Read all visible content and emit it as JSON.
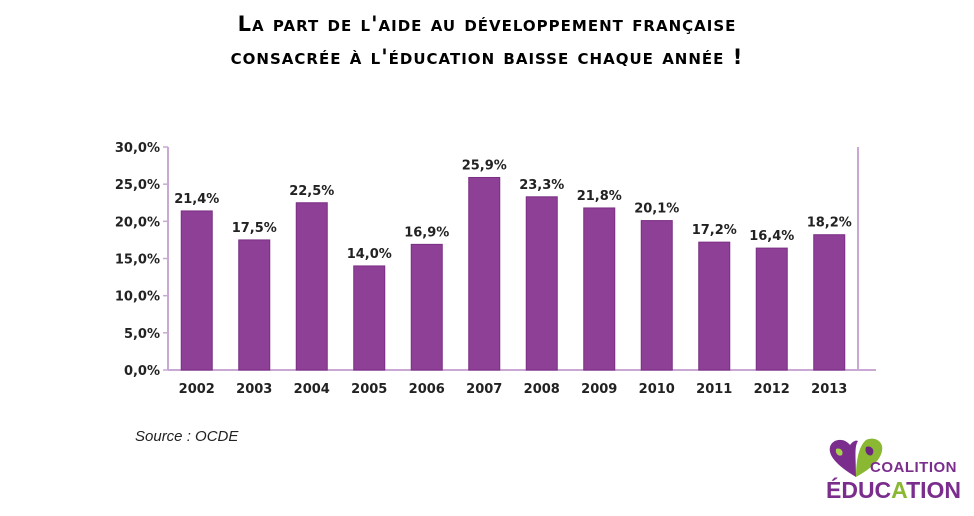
{
  "title": {
    "line1": "La part de l'aide au développement française",
    "line2": "consacrée à l'éducation baisse chaque année  !"
  },
  "source": "Source : OCDE",
  "logo": {
    "line1": "COALITION",
    "line2_first": "ÉDUC",
    "line2_mid": "A",
    "line2_last": "TION"
  },
  "chart_data": {
    "type": "bar",
    "categories": [
      "2002",
      "2003",
      "2004",
      "2005",
      "2006",
      "2007",
      "2008",
      "2009",
      "2010",
      "2011",
      "2012",
      "2013"
    ],
    "values": [
      21.4,
      17.5,
      22.5,
      14.0,
      16.9,
      25.9,
      23.3,
      21.8,
      20.1,
      17.2,
      16.4,
      18.2
    ],
    "value_labels": [
      "21,4%",
      "17,5%",
      "22,5%",
      "14,0%",
      "16,9%",
      "25,9%",
      "23,3%",
      "21,8%",
      "20,1%",
      "17,2%",
      "16,4%",
      "18,2%"
    ],
    "yticks": [
      0,
      5,
      10,
      15,
      20,
      25,
      30
    ],
    "ytick_labels": [
      "0,0%",
      "5,0%",
      "10,0%",
      "15,0%",
      "20,0%",
      "25,0%",
      "30,0%"
    ],
    "ylim": [
      0,
      30
    ],
    "bar_color": "#8e3f96",
    "frame_color": "#c9a9d3",
    "grid": false
  }
}
